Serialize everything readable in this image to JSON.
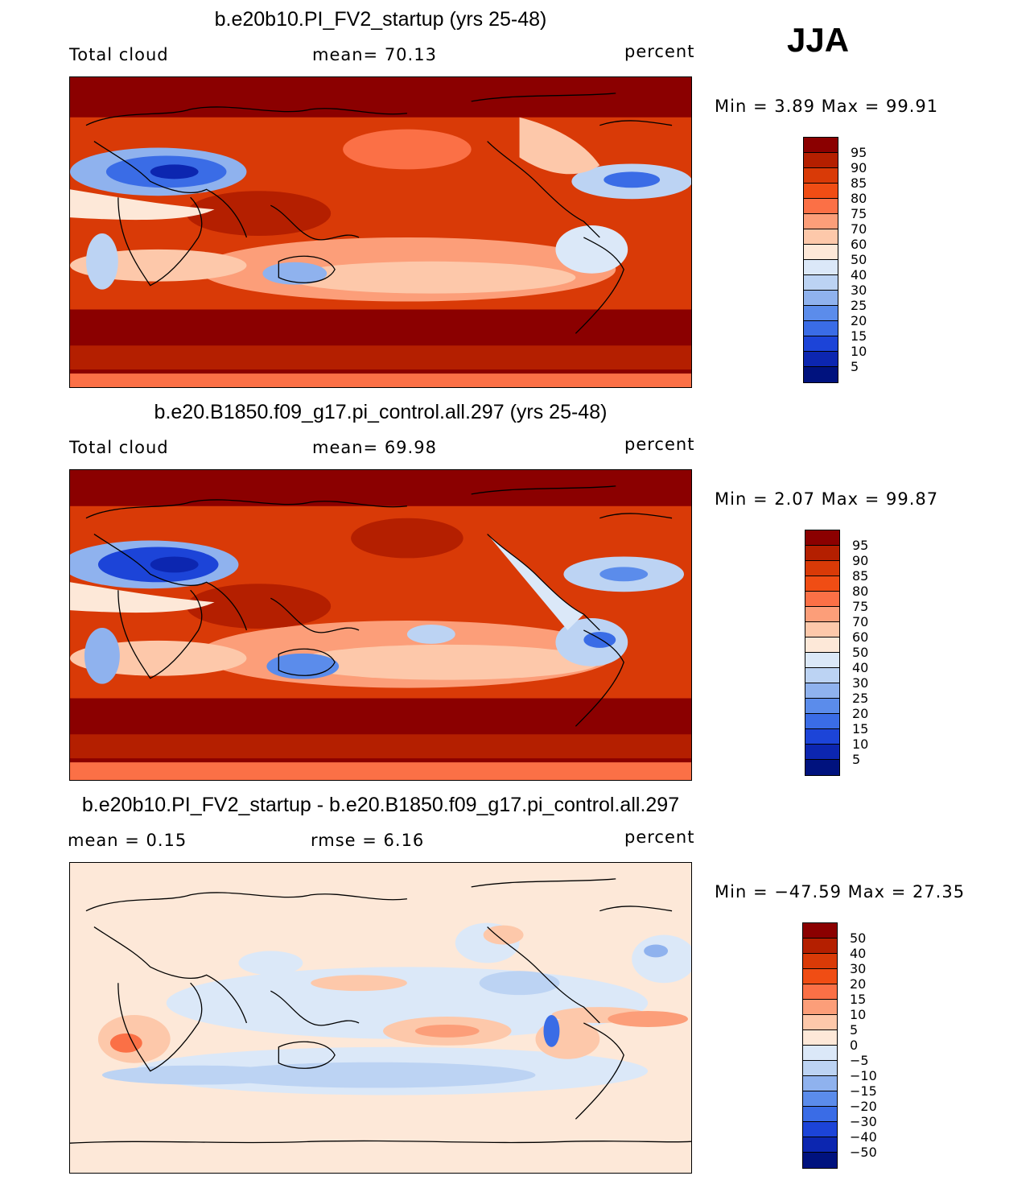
{
  "season": "JJA",
  "panels": [
    {
      "title": "b.e20b10.PI_FV2_startup (yrs 25-48)",
      "left_label": "Total cloud",
      "center_label": "mean=   70.13",
      "right_label": "percent",
      "minmax": "Min =    3.89  Max =   99.91",
      "levels": [
        "95",
        "90",
        "85",
        "80",
        "75",
        "70",
        "60",
        "50",
        "40",
        "30",
        "25",
        "20",
        "15",
        "10",
        "5"
      ],
      "colors": [
        "#8b0000",
        "#b41f00",
        "#d93a07",
        "#f04d14",
        "#fb7046",
        "#fc9e79",
        "#fdc8aa",
        "#fde8d8",
        "#dbe8f8",
        "#bcd3f3",
        "#8fb2ee",
        "#5b8ceb",
        "#3a6ce6",
        "#1c44d8",
        "#0c26b0",
        "#00127e"
      ]
    },
    {
      "title": "b.e20.B1850.f09_g17.pi_control.all.297 (yrs 25-48)",
      "left_label": "Total cloud",
      "center_label": "mean=   69.98",
      "right_label": "percent",
      "minmax": "Min =    2.07  Max =   99.87",
      "levels": [
        "95",
        "90",
        "85",
        "80",
        "75",
        "70",
        "60",
        "50",
        "40",
        "30",
        "25",
        "20",
        "15",
        "10",
        "5"
      ],
      "colors": [
        "#8b0000",
        "#b41f00",
        "#d93a07",
        "#f04d14",
        "#fb7046",
        "#fc9e79",
        "#fdc8aa",
        "#fde8d8",
        "#dbe8f8",
        "#bcd3f3",
        "#8fb2ee",
        "#5b8ceb",
        "#3a6ce6",
        "#1c44d8",
        "#0c26b0",
        "#00127e"
      ]
    },
    {
      "title": "b.e20b10.PI_FV2_startup - b.e20.B1850.f09_g17.pi_control.all.297",
      "left_label": "mean =    0.15",
      "center_label": "rmse =    6.16",
      "right_label": "percent",
      "minmax": "Min = −47.59  Max =   27.35",
      "levels": [
        "50",
        "40",
        "30",
        "20",
        "15",
        "10",
        "5",
        "0",
        "−5",
        "−10",
        "−15",
        "−20",
        "−30",
        "−40",
        "−50"
      ],
      "colors": [
        "#8b0000",
        "#b41f00",
        "#d93a07",
        "#f04d14",
        "#fb7046",
        "#fc9e79",
        "#fdc8aa",
        "#fde8d8",
        "#dbe8f8",
        "#bcd3f3",
        "#8fb2ee",
        "#5b8ceb",
        "#3a6ce6",
        "#1c44d8",
        "#0c26b0",
        "#00127e"
      ]
    }
  ]
}
